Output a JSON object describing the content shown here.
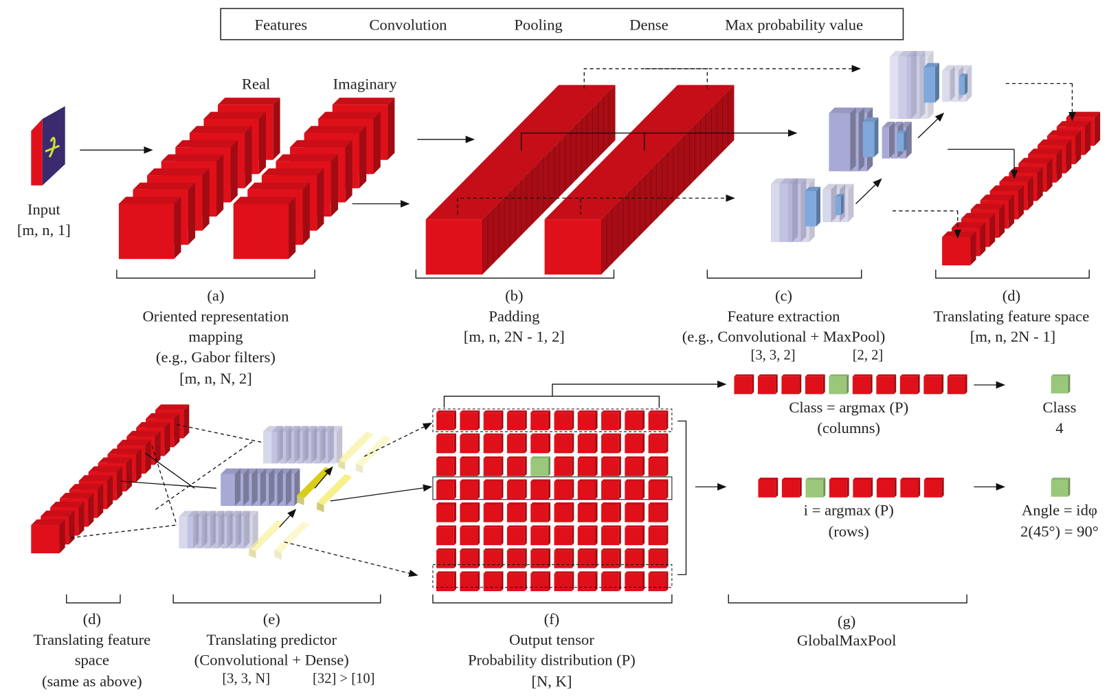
{
  "legend": [
    {
      "label": "Features",
      "color": "#e0101a"
    },
    {
      "label": "Convolution",
      "color": "#a9a9d6"
    },
    {
      "label": "Pooling",
      "color": "#7fa8dc"
    },
    {
      "label": "Dense",
      "color": "#f6ef8a"
    },
    {
      "label": "Max probability value",
      "color": "#9bc77a"
    }
  ],
  "top": {
    "real": "Real",
    "imaginary": "Imaginary",
    "input": {
      "title": "Input",
      "shape": "[m, n, 1]"
    },
    "a": {
      "tag": "(a)",
      "l1": "Oriented representation",
      "l2": "mapping",
      "l3": "(e.g., Gabor filters)",
      "shape": "[m, n, N, 2]"
    },
    "b": {
      "tag": "(b)",
      "l1": "Padding",
      "shape": "[m, n, 2N - 1, 2]"
    },
    "c": {
      "tag": "(c)",
      "l1": "Feature extraction",
      "l2": "(e.g., Convolutional + MaxPool)",
      "shape1": "[3, 3, 2]",
      "shape2": "[2, 2]"
    },
    "d": {
      "tag": "(d)",
      "l1": "Translating feature space",
      "shape": "[m, n, 2N - 1]"
    }
  },
  "bottom": {
    "d": {
      "tag": "(d)",
      "l1": "Translating feature",
      "l2": "space",
      "l3": "(same as above)"
    },
    "e": {
      "tag": "(e)",
      "l1": "Translating predictor",
      "l2": "(Convolutional + Dense)",
      "shape1": "[3, 3, N]",
      "shape2": "[32] > [10]"
    },
    "f": {
      "tag": "(f)",
      "l1": "Output tensor",
      "l2": "Probability distribution (P)",
      "shape": "[N, K]"
    },
    "g": {
      "tag": "(g)",
      "l1": "GlobalMaxPool"
    }
  },
  "pooling": {
    "class_formula": "Class = argmax (P)",
    "class_axis": "(columns)",
    "class_label": "Class",
    "class_value": "4",
    "row_formula": "i = argmax (P)",
    "row_axis": "(rows)",
    "angle_formula": "Angle = idφ",
    "angle_value": "2(45°) = 90°"
  },
  "tensor": {
    "rows": 8,
    "cols": 10,
    "max_row": 2,
    "max_col": 4
  },
  "class_vector": {
    "length": 10,
    "max_index": 4
  },
  "row_vector": {
    "length": 8,
    "max_index": 2
  }
}
